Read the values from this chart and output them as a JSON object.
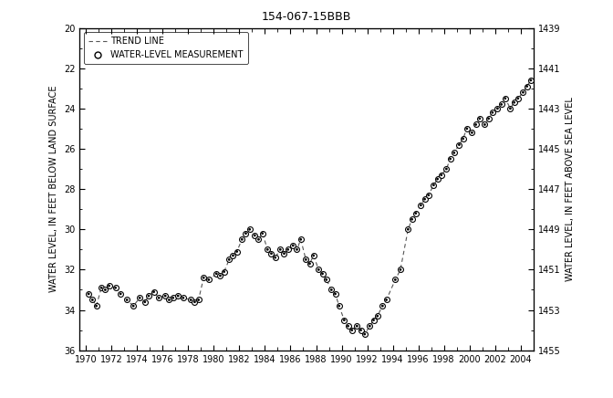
{
  "title": "154-067-15BBB",
  "ylabel_left": "WATER LEVEL, IN FEET BELOW LAND SURFACE",
  "ylabel_right": "WATER LEVEL, IN FEET ABOVE SEA LEVEL",
  "ylim_left": [
    20,
    36
  ],
  "ylim_right": [
    1439,
    1455
  ],
  "xlim": [
    1969.5,
    2005
  ],
  "xticks": [
    1970,
    1972,
    1974,
    1976,
    1978,
    1980,
    1982,
    1984,
    1986,
    1988,
    1990,
    1992,
    1994,
    1996,
    1998,
    2000,
    2002,
    2004
  ],
  "yticks_left": [
    20,
    22,
    24,
    26,
    28,
    30,
    32,
    34,
    36
  ],
  "yticks_right": [
    1439,
    1441,
    1443,
    1445,
    1447,
    1449,
    1451,
    1453,
    1455
  ],
  "background_color": "#ffffff",
  "line_color": "#555555",
  "marker_color": "#000000",
  "legend_entries": [
    "TREND LINE",
    "WATER-LEVEL MEASUREMENT"
  ],
  "data_x": [
    1970.2,
    1970.5,
    1970.8,
    1971.2,
    1971.5,
    1971.8,
    1972.3,
    1972.7,
    1973.2,
    1973.7,
    1974.2,
    1974.6,
    1974.9,
    1975.3,
    1975.7,
    1976.2,
    1976.5,
    1976.8,
    1977.2,
    1977.6,
    1978.2,
    1978.5,
    1978.8,
    1979.2,
    1979.6,
    1980.2,
    1980.5,
    1980.8,
    1981.2,
    1981.5,
    1981.8,
    1982.2,
    1982.5,
    1982.8,
    1983.2,
    1983.5,
    1983.8,
    1984.2,
    1984.5,
    1984.8,
    1985.2,
    1985.5,
    1985.8,
    1986.2,
    1986.5,
    1986.8,
    1987.2,
    1987.5,
    1987.8,
    1988.2,
    1988.5,
    1988.8,
    1989.2,
    1989.5,
    1989.8,
    1990.2,
    1990.5,
    1990.8,
    1991.2,
    1991.5,
    1991.8,
    1992.2,
    1992.5,
    1992.8,
    1993.2,
    1993.5,
    1994.2,
    1994.6,
    1995.2,
    1995.5,
    1995.8,
    1996.2,
    1996.5,
    1996.8,
    1997.2,
    1997.5,
    1997.8,
    1998.2,
    1998.5,
    1998.8,
    1999.2,
    1999.5,
    1999.8,
    2000.2,
    2000.5,
    2000.8,
    2001.2,
    2001.5,
    2001.8,
    2002.2,
    2002.5,
    2002.8,
    2003.2,
    2003.5,
    2003.8,
    2004.2,
    2004.5,
    2004.8
  ],
  "data_y": [
    33.2,
    33.5,
    33.8,
    32.9,
    33.0,
    32.8,
    32.9,
    33.2,
    33.5,
    33.8,
    33.4,
    33.6,
    33.3,
    33.1,
    33.4,
    33.3,
    33.5,
    33.4,
    33.3,
    33.4,
    33.5,
    33.6,
    33.5,
    32.4,
    32.5,
    32.2,
    32.3,
    32.1,
    31.5,
    31.3,
    31.1,
    30.5,
    30.2,
    30.0,
    30.3,
    30.5,
    30.2,
    31.0,
    31.2,
    31.4,
    31.0,
    31.2,
    31.0,
    30.8,
    31.0,
    30.5,
    31.5,
    31.7,
    31.3,
    32.0,
    32.2,
    32.5,
    33.0,
    33.2,
    33.8,
    34.5,
    34.8,
    35.0,
    34.8,
    35.0,
    35.2,
    34.8,
    34.5,
    34.3,
    33.8,
    33.5,
    32.5,
    32.0,
    30.0,
    29.5,
    29.2,
    28.8,
    28.5,
    28.3,
    27.8,
    27.5,
    27.3,
    27.0,
    26.5,
    26.2,
    25.8,
    25.5,
    25.0,
    25.2,
    24.8,
    24.5,
    24.8,
    24.5,
    24.2,
    24.0,
    23.8,
    23.5,
    24.0,
    23.7,
    23.5,
    23.2,
    22.9,
    22.6
  ]
}
